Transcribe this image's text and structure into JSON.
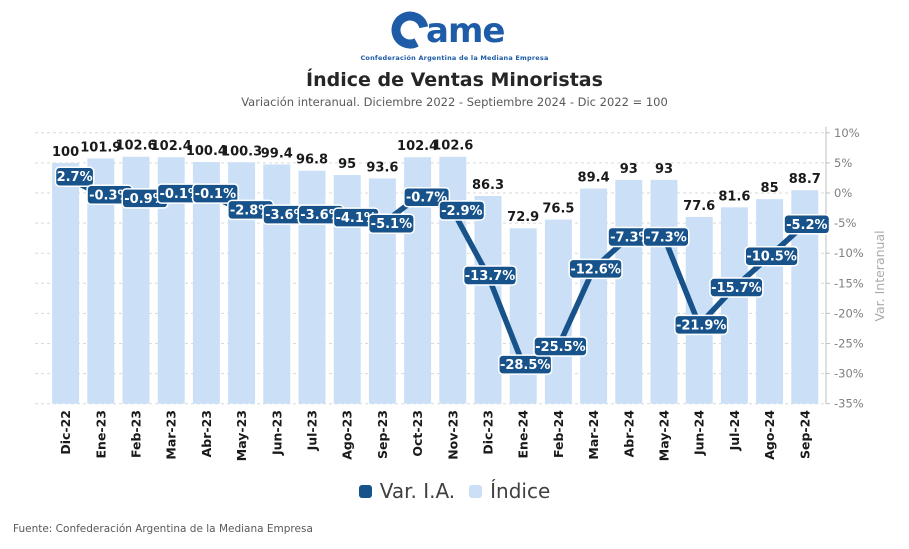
{
  "header": {
    "logo_text": "Came",
    "logo_subtext": "Confederación Argentina de la Mediana Empresa",
    "logo_color": "#1E5CA8",
    "title": "Índice de Ventas Minoristas",
    "subtitle": "Variación interanual. Diciembre 2022 - Septiembre 2024 - Dic 2022 = 100"
  },
  "chart_data": {
    "type": "bar",
    "title": "Índice de Ventas Minoristas",
    "subtitle": "Variación interanual. Diciembre 2022 - Septiembre 2024 - Dic 2022 = 100",
    "categories": [
      "Dic-22",
      "Ene-23",
      "Feb-23",
      "Mar-23",
      "Abr-23",
      "May-23",
      "Jun-23",
      "Jul-23",
      "Ago-23",
      "Sep-23",
      "Oct-23",
      "Nov-23",
      "Dic-23",
      "Ene-24",
      "Feb-24",
      "Mar-24",
      "Abr-24",
      "May-24",
      "Jun-24",
      "Jul-24",
      "Ago-24",
      "Sep-24"
    ],
    "series": [
      {
        "name": "Índice",
        "type": "bar",
        "color": "#CBE0F7",
        "values": [
          100,
          101.9,
          102.6,
          102.4,
          100.4,
          100.3,
          99.4,
          96.8,
          95,
          93.6,
          102.4,
          102.6,
          86.3,
          72.9,
          76.5,
          89.4,
          93,
          93,
          77.6,
          81.6,
          85,
          88.7
        ],
        "labels": [
          "100",
          "101.9",
          "102.6",
          "102.4",
          "100.4",
          "100.3",
          "99.4",
          "96.8",
          "95",
          "93.6",
          "102.4",
          "102.6",
          "86.3",
          "72.9",
          "76.5",
          "89.4",
          "93",
          "93",
          "77.6",
          "81.6",
          "85",
          "88.7"
        ]
      },
      {
        "name": "Var. I.A.",
        "type": "line",
        "axis": "right",
        "color": "#17538A",
        "values": [
          2.7,
          -0.3,
          -0.9,
          -0.1,
          -0.1,
          -2.8,
          -3.6,
          -3.6,
          -4.1,
          -5.1,
          -0.7,
          -2.9,
          -13.7,
          -28.5,
          -25.5,
          -12.6,
          -7.3,
          -7.3,
          -21.9,
          -15.7,
          -10.5,
          -5.2
        ],
        "labels": [
          "2.7%",
          "-0.3%",
          "-0.9%",
          "-0.1%",
          "-0.1%",
          "-2.8%",
          "-3.6%",
          "-3.6%",
          "-4.1%",
          "-5.1%",
          "-0.7%",
          "-2.9%",
          "-13.7%",
          "-28.5%",
          "-25.5%",
          "-12.6%",
          "-7.3%",
          "-7.3%",
          "-21.9%",
          "-15.7%",
          "-10.5%",
          "-5.2%"
        ]
      }
    ],
    "right_axis": {
      "label": "Var. Interanual",
      "min": -35,
      "max": 10,
      "step": 5,
      "ticks": [
        "10%",
        "5%",
        "0%",
        "-5%",
        "-10%",
        "-15%",
        "-20%",
        "-25%",
        "-30%",
        "-35%"
      ]
    },
    "grid": "horizontal dashed",
    "legend_position": "bottom",
    "colors": {
      "grid": "#D9D9D9",
      "axis_line": "#BFBFBF",
      "tick_text": "#7F7F7F",
      "axis_title": "#ABABAB",
      "bar_label": "#1A1A1A",
      "x_label": "#1A1A1A",
      "pill_text": "#FFFFFF"
    }
  },
  "legend": [
    {
      "label": "Var. I.A.",
      "color": "#17538A"
    },
    {
      "label": "Índice",
      "color": "#CBE0F7"
    }
  ],
  "footer": {
    "source": "Fuente: Confederación Argentina de la Mediana Empresa"
  }
}
